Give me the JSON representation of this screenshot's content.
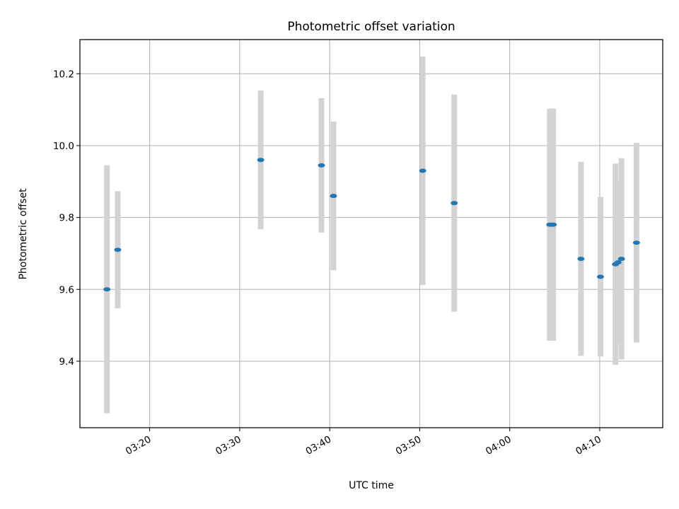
{
  "chart_data": {
    "type": "scatter",
    "title": "Photometric offset variation",
    "xlabel": "UTC time",
    "ylabel": "Photometric offset",
    "x_unit": "time of day (UTC, HH:MM)",
    "xlim": [
      "03:12:15",
      "04:17:00"
    ],
    "ylim": [
      9.215,
      10.295
    ],
    "x_ticks": [
      "03:20",
      "03:30",
      "03:40",
      "03:50",
      "04:00",
      "04:10"
    ],
    "y_ticks": [
      9.4,
      9.6,
      9.8,
      10.0,
      10.2
    ],
    "grid": true,
    "legend": "none",
    "colors": {
      "points": "#1f77b4",
      "error_bars": "#d3d3d3",
      "grid": "#b0b0b0"
    },
    "series": [
      {
        "points": [
          {
            "x": "03:15:15",
            "y": 9.6,
            "yerr": 0.345
          },
          {
            "x": "03:16:27",
            "y": 9.71,
            "yerr": 0.163
          },
          {
            "x": "03:32:20",
            "y": 9.96,
            "yerr": 0.193
          },
          {
            "x": "03:39:05",
            "y": 9.945,
            "yerr": 0.187
          },
          {
            "x": "03:40:25",
            "y": 9.86,
            "yerr": 0.207
          },
          {
            "x": "03:50:20",
            "y": 9.93,
            "yerr": 0.318
          },
          {
            "x": "03:53:50",
            "y": 9.84,
            "yerr": 0.302
          },
          {
            "x": "04:04:27",
            "y": 9.78,
            "yerr": 0.323
          },
          {
            "x": "04:04:50",
            "y": 9.78,
            "yerr": 0.323
          },
          {
            "x": "04:07:55",
            "y": 9.685,
            "yerr": 0.27
          },
          {
            "x": "04:10:05",
            "y": 9.635,
            "yerr": 0.222
          },
          {
            "x": "04:11:45",
            "y": 9.67,
            "yerr": 0.28
          },
          {
            "x": "04:12:02",
            "y": 9.675,
            "yerr": 0.225
          },
          {
            "x": "04:12:25",
            "y": 9.685,
            "yerr": 0.28
          },
          {
            "x": "04:14:05",
            "y": 9.73,
            "yerr": 0.278
          }
        ]
      }
    ]
  }
}
